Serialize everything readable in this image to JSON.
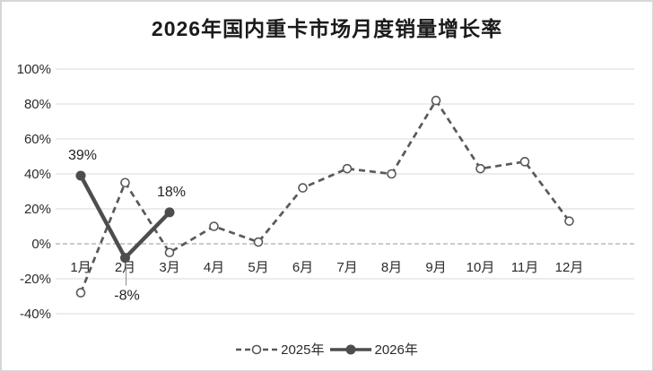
{
  "chart_data": {
    "type": "line",
    "title": "2026年国内重卡市场月度销量增长率",
    "categories": [
      "1月",
      "2月",
      "3月",
      "4月",
      "5月",
      "6月",
      "7月",
      "8月",
      "9月",
      "10月",
      "11月",
      "12月"
    ],
    "series": [
      {
        "name": "2025年",
        "style": "dashed",
        "color": "#595959",
        "values": [
          -28,
          35,
          -5,
          10,
          1,
          32,
          43,
          40,
          82,
          43,
          47,
          13
        ]
      },
      {
        "name": "2026年",
        "style": "solid",
        "color": "#4d4d4d",
        "values": [
          39,
          -8,
          18
        ],
        "point_labels": [
          {
            "text": "39%",
            "position": "above"
          },
          {
            "text": "-8%",
            "position": "below-leader"
          },
          {
            "text": "18%",
            "position": "above"
          }
        ]
      }
    ],
    "y_axis": {
      "tick_values": [
        100,
        80,
        60,
        40,
        20,
        0,
        -20,
        -40
      ],
      "tick_labels": [
        "100%",
        "80%",
        "60%",
        "40%",
        "20%",
        "0%",
        "-20%",
        "-40%"
      ],
      "min": -40,
      "max": 100
    },
    "grid": true,
    "legend_position": "bottom",
    "colors": {
      "gridline": "#d9d9d9",
      "zero_line": "#9a9a9a",
      "leader_line": "#8c8c8c",
      "title": "#1a1a1a",
      "axis_text": "#2b2b2b"
    }
  }
}
